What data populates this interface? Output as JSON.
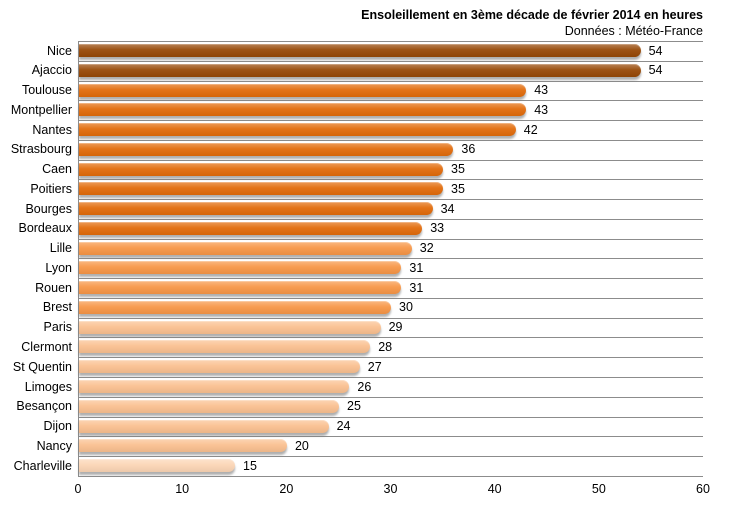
{
  "chart_data": {
    "type": "bar",
    "orientation": "horizontal",
    "title": "Ensoleillement en 3ème décade de février 2014 en heures",
    "subtitle": "Données : Météo-France",
    "xlabel": "",
    "ylabel": "",
    "xlim": [
      0,
      60
    ],
    "x_ticks": [
      0,
      10,
      20,
      30,
      40,
      50,
      60
    ],
    "grid": "horizontal category separator lines only, no vertical gridlines",
    "legend": false,
    "data_labels": true,
    "categories": [
      "Nice",
      "Ajaccio",
      "Toulouse",
      "Montpellier",
      "Nantes",
      "Strasbourg",
      "Caen",
      "Poitiers",
      "Bourges",
      "Bordeaux",
      "Lille",
      "Lyon",
      "Rouen",
      "Brest",
      "Paris",
      "Clermont",
      "St Quentin",
      "Limoges",
      "Besançon",
      "Dijon",
      "Nancy",
      "Charleville"
    ],
    "values": [
      54,
      54,
      43,
      43,
      42,
      36,
      35,
      35,
      34,
      33,
      32,
      31,
      31,
      30,
      29,
      28,
      27,
      26,
      25,
      24,
      20,
      15
    ],
    "bar_colors": [
      "#974806",
      "#974806",
      "#E26B0A",
      "#E26B0A",
      "#E26B0A",
      "#E26B0A",
      "#E26B0A",
      "#E26B0A",
      "#E26B0A",
      "#E26B0A",
      "#F79646",
      "#F79646",
      "#F79646",
      "#F79646",
      "#FAC090",
      "#FAC090",
      "#FAC090",
      "#FAC090",
      "#FAC090",
      "#FAC090",
      "#FAC090",
      "#FBD5B5"
    ],
    "colors": {
      "separator_line": "#8C8C8C",
      "axis_line": "#8C8C8C",
      "text": "#000000",
      "background": "#FFFFFF"
    }
  }
}
